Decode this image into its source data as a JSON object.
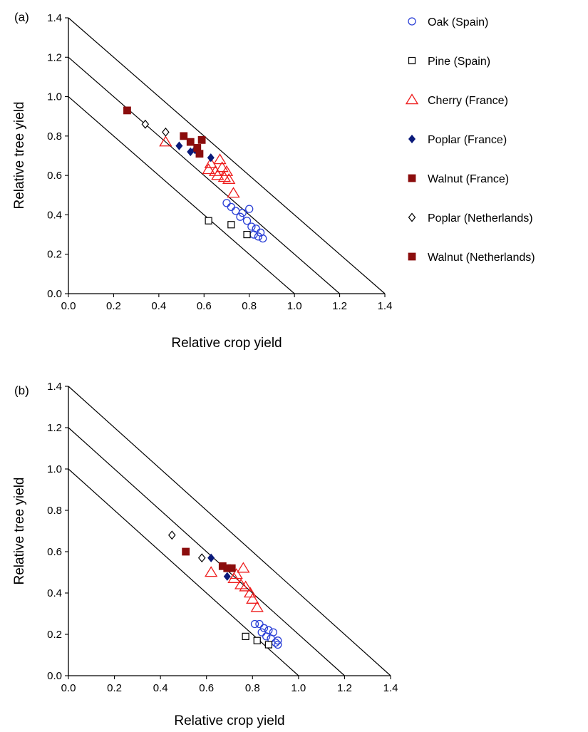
{
  "legend": [
    {
      "key": "oak_spain",
      "label": "Oak (Spain)",
      "marker": "circle-open",
      "color": "#2a3fd6"
    },
    {
      "key": "pine_spain",
      "label": "Pine (Spain)",
      "marker": "square-open",
      "color": "#000000"
    },
    {
      "key": "cherry_france",
      "label": "Cherry (France)",
      "marker": "triangle-open",
      "color": "#ee1c1c"
    },
    {
      "key": "poplar_france",
      "label": "Poplar (France)",
      "marker": "diamond-filled",
      "color": "#0a1a7a"
    },
    {
      "key": "walnut_france",
      "label": "Walnut (France)",
      "marker": "square-filled",
      "color": "#8b0d0d"
    },
    {
      "key": "poplar_netherlands",
      "label": "Poplar (Netherlands)",
      "marker": "diamond-open",
      "color": "#000000"
    },
    {
      "key": "walnut_netherlands",
      "label": "Walnut (Netherlands)",
      "marker": "square-filled",
      "color": "#8b0d0d"
    }
  ],
  "chart_data": [
    {
      "type": "scatter",
      "panel_label": "(a)",
      "xlabel": "Relative crop yield",
      "ylabel": "Relative tree yield",
      "xlim": [
        0,
        1.4
      ],
      "ylim": [
        0,
        1.4
      ],
      "xticks": [
        "0.0",
        "0.2",
        "0.4",
        "0.6",
        "0.8",
        "1.0",
        "1.2",
        "1.4"
      ],
      "yticks": [
        "0.0",
        "0.2",
        "0.4",
        "0.6",
        "0.8",
        "1.0",
        "1.2",
        "1.4"
      ],
      "reference_lines_ler": [
        1.0,
        1.2,
        1.4
      ],
      "series": [
        {
          "key": "oak_spain",
          "points": [
            [
              0.7,
              0.46
            ],
            [
              0.72,
              0.44
            ],
            [
              0.74,
              0.42
            ],
            [
              0.76,
              0.39
            ],
            [
              0.77,
              0.41
            ],
            [
              0.79,
              0.37
            ],
            [
              0.8,
              0.43
            ],
            [
              0.81,
              0.34
            ],
            [
              0.82,
              0.3
            ],
            [
              0.83,
              0.33
            ],
            [
              0.84,
              0.29
            ],
            [
              0.85,
              0.31
            ],
            [
              0.86,
              0.28
            ]
          ]
        },
        {
          "key": "pine_spain",
          "points": [
            [
              0.62,
              0.37
            ],
            [
              0.72,
              0.35
            ],
            [
              0.79,
              0.3
            ]
          ]
        },
        {
          "key": "cherry_france",
          "points": [
            [
              0.43,
              0.77
            ],
            [
              0.62,
              0.63
            ],
            [
              0.63,
              0.66
            ],
            [
              0.65,
              0.62
            ],
            [
              0.66,
              0.6
            ],
            [
              0.67,
              0.68
            ],
            [
              0.68,
              0.64
            ],
            [
              0.69,
              0.59
            ],
            [
              0.7,
              0.62
            ],
            [
              0.71,
              0.58
            ],
            [
              0.73,
              0.51
            ]
          ]
        },
        {
          "key": "poplar_france",
          "points": [
            [
              0.49,
              0.75
            ],
            [
              0.54,
              0.72
            ],
            [
              0.56,
              0.73
            ],
            [
              0.63,
              0.69
            ]
          ]
        },
        {
          "key": "walnut_france",
          "points": [
            [
              0.51,
              0.8
            ],
            [
              0.54,
              0.77
            ],
            [
              0.57,
              0.74
            ],
            [
              0.58,
              0.71
            ],
            [
              0.59,
              0.78
            ]
          ]
        },
        {
          "key": "poplar_netherlands",
          "points": [
            [
              0.34,
              0.86
            ],
            [
              0.43,
              0.82
            ]
          ]
        },
        {
          "key": "walnut_netherlands",
          "points": [
            [
              0.26,
              0.93
            ]
          ]
        }
      ]
    },
    {
      "type": "scatter",
      "panel_label": "(b)",
      "xlabel": "Relative crop yield",
      "ylabel": "Relative tree yield",
      "xlim": [
        0,
        1.4
      ],
      "ylim": [
        0,
        1.4
      ],
      "xticks": [
        "0.0",
        "0.2",
        "0.4",
        "0.6",
        "0.8",
        "1.0",
        "1.2",
        "1.4"
      ],
      "yticks": [
        "0.0",
        "0.2",
        "0.4",
        "0.6",
        "0.8",
        "1.0",
        "1.2",
        "1.4"
      ],
      "reference_lines_ler": [
        1.0,
        1.2,
        1.4
      ],
      "series": [
        {
          "key": "oak_spain",
          "points": [
            [
              0.81,
              0.25
            ],
            [
              0.83,
              0.25
            ],
            [
              0.84,
              0.21
            ],
            [
              0.85,
              0.23
            ],
            [
              0.86,
              0.19
            ],
            [
              0.87,
              0.22
            ],
            [
              0.88,
              0.18
            ],
            [
              0.89,
              0.21
            ],
            [
              0.9,
              0.16
            ],
            [
              0.91,
              0.17
            ],
            [
              0.91,
              0.15
            ]
          ]
        },
        {
          "key": "pine_spain",
          "points": [
            [
              0.77,
              0.19
            ],
            [
              0.82,
              0.17
            ],
            [
              0.87,
              0.15
            ]
          ]
        },
        {
          "key": "cherry_france",
          "points": [
            [
              0.62,
              0.5
            ],
            [
              0.72,
              0.47
            ],
            [
              0.73,
              0.49
            ],
            [
              0.75,
              0.44
            ],
            [
              0.76,
              0.52
            ],
            [
              0.77,
              0.43
            ],
            [
              0.79,
              0.4
            ],
            [
              0.8,
              0.37
            ],
            [
              0.82,
              0.33
            ]
          ]
        },
        {
          "key": "poplar_france",
          "points": [
            [
              0.62,
              0.57
            ],
            [
              0.69,
              0.48
            ]
          ]
        },
        {
          "key": "walnut_france",
          "points": [
            [
              0.67,
              0.53
            ],
            [
              0.69,
              0.52
            ],
            [
              0.71,
              0.52
            ]
          ]
        },
        {
          "key": "poplar_netherlands",
          "points": [
            [
              0.45,
              0.68
            ],
            [
              0.58,
              0.57
            ]
          ]
        },
        {
          "key": "walnut_netherlands",
          "points": [
            [
              0.51,
              0.6
            ]
          ]
        }
      ]
    }
  ]
}
